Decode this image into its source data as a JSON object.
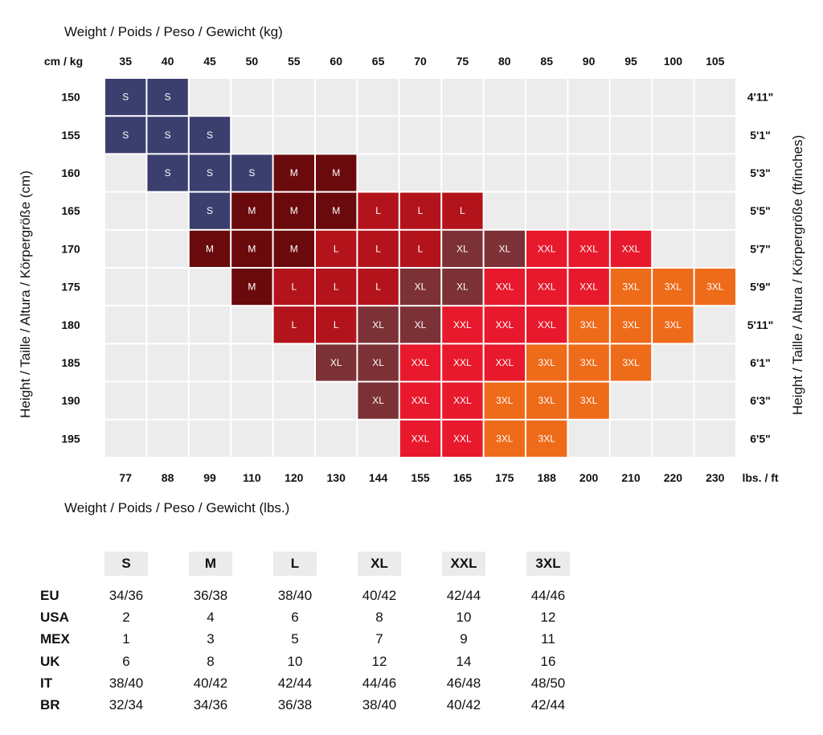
{
  "colors": {
    "S": "#3a3f6e",
    "M": "#6b0a0c",
    "L": "#b3141b",
    "XL": "#7c3136",
    "XXL": "#e8192c",
    "3XL": "#ee6b1a",
    "empty": "#ececec"
  },
  "chart_data": {
    "type": "heatmap",
    "top_axis_title": "Weight / Poids / Peso / Gewicht (kg)",
    "bottom_axis_title": "Weight / Poids / Peso / Gewicht (lbs.)",
    "left_axis_title": "Height / Taille / Altura / Körpergröße (cm)",
    "right_axis_title": "Height / Taille / Altura / Körpergröße (ft/inches)",
    "corner_top": "cm / kg",
    "corner_bottom": "lbs. / ft",
    "kg": [
      "35",
      "40",
      "45",
      "50",
      "55",
      "60",
      "65",
      "70",
      "75",
      "80",
      "85",
      "90",
      "95",
      "100",
      "105"
    ],
    "lbs": [
      "77",
      "88",
      "99",
      "110",
      "120",
      "130",
      "144",
      "155",
      "165",
      "175",
      "188",
      "200",
      "210",
      "220",
      "230"
    ],
    "cm": [
      "150",
      "155",
      "160",
      "165",
      "170",
      "175",
      "180",
      "185",
      "190",
      "195"
    ],
    "ft": [
      "4'11\"",
      "5'1\"",
      "5'3\"",
      "5'5\"",
      "5'7\"",
      "5'9\"",
      "5'11\"",
      "6'1\"",
      "6'3\"",
      "6'5\""
    ],
    "grid": [
      [
        "S",
        "S",
        "",
        "",
        "",
        "",
        "",
        "",
        "",
        "",
        "",
        "",
        "",
        "",
        ""
      ],
      [
        "S",
        "S",
        "S",
        "",
        "",
        "",
        "",
        "",
        "",
        "",
        "",
        "",
        "",
        "",
        ""
      ],
      [
        "",
        "S",
        "S",
        "S",
        "M",
        "M",
        "",
        "",
        "",
        "",
        "",
        "",
        "",
        "",
        ""
      ],
      [
        "",
        "",
        "S",
        "M",
        "M",
        "M",
        "L",
        "L",
        "L",
        "",
        "",
        "",
        "",
        "",
        ""
      ],
      [
        "",
        "",
        "M",
        "M",
        "M",
        "L",
        "L",
        "L",
        "XL",
        "XL",
        "XXL",
        "XXL",
        "XXL",
        "",
        ""
      ],
      [
        "",
        "",
        "",
        "M",
        "L",
        "L",
        "L",
        "XL",
        "XL",
        "XXL",
        "XXL",
        "XXL",
        "3XL",
        "3XL",
        "3XL"
      ],
      [
        "",
        "",
        "",
        "",
        "L",
        "L",
        "XL",
        "XL",
        "XXL",
        "XXL",
        "XXL",
        "3XL",
        "3XL",
        "3XL",
        ""
      ],
      [
        "",
        "",
        "",
        "",
        "",
        "XL",
        "XL",
        "XXL",
        "XXL",
        "XXL",
        "3XL",
        "3XL",
        "3XL",
        "",
        ""
      ],
      [
        "",
        "",
        "",
        "",
        "",
        "",
        "XL",
        "XXL",
        "XXL",
        "3XL",
        "3XL",
        "3XL",
        "",
        "",
        ""
      ],
      [
        "",
        "",
        "",
        "",
        "",
        "",
        "",
        "XXL",
        "XXL",
        "3XL",
        "3XL",
        "",
        "",
        "",
        ""
      ]
    ]
  },
  "size_table": {
    "sizes": [
      "S",
      "M",
      "L",
      "XL",
      "XXL",
      "3XL"
    ],
    "rows": [
      {
        "label": "EU",
        "values": [
          "34/36",
          "36/38",
          "38/40",
          "40/42",
          "42/44",
          "44/46"
        ]
      },
      {
        "label": "USA",
        "values": [
          "2",
          "4",
          "6",
          "8",
          "10",
          "12"
        ]
      },
      {
        "label": "MEX",
        "values": [
          "1",
          "3",
          "5",
          "7",
          "9",
          "11"
        ]
      },
      {
        "label": "UK",
        "values": [
          "6",
          "8",
          "10",
          "12",
          "14",
          "16"
        ]
      },
      {
        "label": "IT",
        "values": [
          "38/40",
          "40/42",
          "42/44",
          "44/46",
          "46/48",
          "48/50"
        ]
      },
      {
        "label": "BR",
        "values": [
          "32/34",
          "34/36",
          "36/38",
          "38/40",
          "40/42",
          "42/44"
        ]
      }
    ]
  }
}
